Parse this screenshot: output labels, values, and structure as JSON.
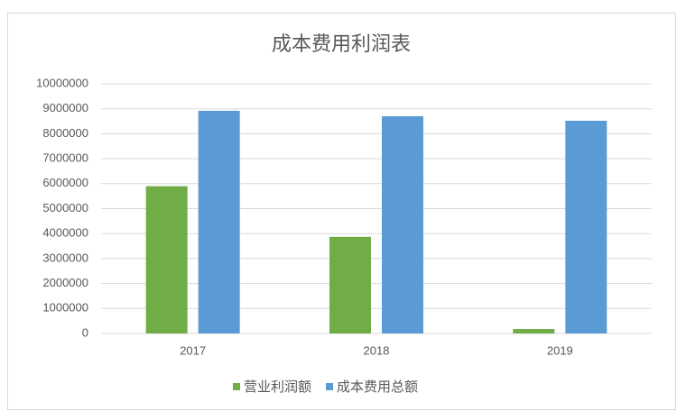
{
  "chart_data": {
    "type": "bar",
    "title": "成本费用利润表",
    "categories": [
      "2017",
      "2018",
      "2019"
    ],
    "series": [
      {
        "name": "营业利润额",
        "color": "#70ad47",
        "values": [
          5900000,
          3870000,
          180000
        ]
      },
      {
        "name": "成本费用总额",
        "color": "#5b9bd5",
        "values": [
          8920000,
          8700000,
          8520000
        ]
      }
    ],
    "ylim": [
      0,
      10000000
    ],
    "yticks": [
      0,
      1000000,
      2000000,
      3000000,
      4000000,
      5000000,
      6000000,
      7000000,
      8000000,
      9000000,
      10000000
    ],
    "grid": true,
    "legend": "bottom"
  }
}
